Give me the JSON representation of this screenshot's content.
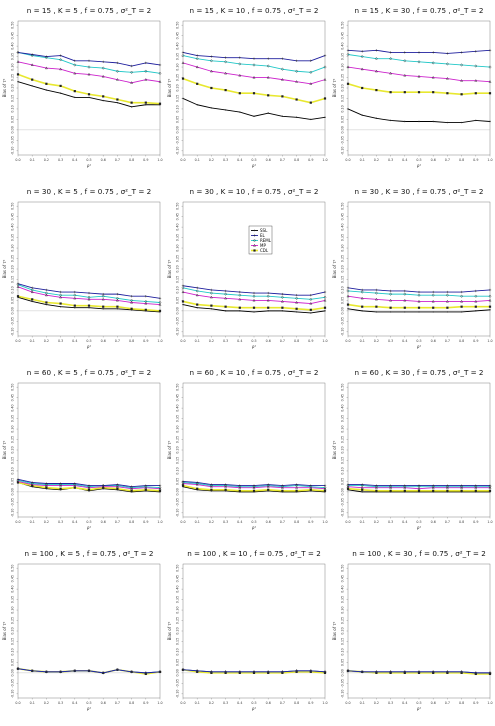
{
  "xlabel": "ρ²",
  "ylabel": "Bias of τ²",
  "x": [
    0.0,
    0.1,
    0.2,
    0.3,
    0.4,
    0.5,
    0.6,
    0.7,
    0.8,
    0.9,
    1.0
  ],
  "x_ticks": [
    "0.0",
    "0.1",
    "0.2",
    "0.3",
    "0.4",
    "0.5",
    "0.6",
    "0.7",
    "0.8",
    "0.9",
    "1.0"
  ],
  "y_ticks": [
    "-0.10",
    "-0.05",
    "0.00",
    "0.05",
    "0.10",
    "0.15",
    "0.20",
    "0.25",
    "0.30",
    "0.35",
    "0.40",
    "0.45",
    "0.50"
  ],
  "colors": {
    "SSL": "#000000",
    "EL": "#1f1f9e",
    "REML": "#22c8c8",
    "MP": "#cc22cc",
    "CDL": "#e8e830",
    "marker": "#222222",
    "zero": "#aaaaaa"
  },
  "chart_data": [
    {
      "type": "line",
      "title": "n = 15 , K = 5 , f = 0.75 , σ²_T = 2",
      "ylim": [
        -0.12,
        0.52
      ],
      "series": [
        {
          "name": "EL",
          "values": [
            0.37,
            0.36,
            0.35,
            0.355,
            0.33,
            0.33,
            0.325,
            0.32,
            0.305,
            0.32,
            0.31
          ]
        },
        {
          "name": "REML",
          "values": [
            0.37,
            0.355,
            0.345,
            0.335,
            0.31,
            0.3,
            0.295,
            0.28,
            0.275,
            0.28,
            0.27
          ]
        },
        {
          "name": "MP",
          "values": [
            0.325,
            0.31,
            0.295,
            0.29,
            0.27,
            0.265,
            0.255,
            0.24,
            0.225,
            0.24,
            0.23
          ]
        },
        {
          "name": "CDL",
          "values": [
            0.265,
            0.24,
            0.22,
            0.21,
            0.185,
            0.17,
            0.16,
            0.145,
            0.13,
            0.13,
            0.125
          ]
        },
        {
          "name": "SSL",
          "values": [
            0.23,
            0.21,
            0.19,
            0.175,
            0.155,
            0.155,
            0.14,
            0.13,
            0.11,
            0.12,
            0.12
          ]
        }
      ]
    },
    {
      "type": "line",
      "title": "n = 15 , K = 10 , f = 0.75 , σ²_T = 2",
      "ylim": [
        -0.12,
        0.52
      ],
      "series": [
        {
          "name": "EL",
          "values": [
            0.37,
            0.355,
            0.35,
            0.345,
            0.345,
            0.34,
            0.34,
            0.34,
            0.33,
            0.33,
            0.355
          ]
        },
        {
          "name": "REML",
          "values": [
            0.355,
            0.34,
            0.33,
            0.325,
            0.315,
            0.31,
            0.305,
            0.29,
            0.28,
            0.275,
            0.3
          ]
        },
        {
          "name": "MP",
          "values": [
            0.32,
            0.3,
            0.28,
            0.27,
            0.26,
            0.25,
            0.25,
            0.24,
            0.23,
            0.22,
            0.24
          ]
        },
        {
          "name": "CDL",
          "values": [
            0.245,
            0.22,
            0.2,
            0.19,
            0.175,
            0.175,
            0.165,
            0.16,
            0.145,
            0.13,
            0.15
          ]
        },
        {
          "name": "SSL",
          "values": [
            0.15,
            0.12,
            0.105,
            0.095,
            0.085,
            0.065,
            0.08,
            0.065,
            0.06,
            0.05,
            0.06
          ]
        }
      ]
    },
    {
      "type": "line",
      "title": "n = 15 , K = 30 , f = 0.75 , σ²_T = 2",
      "ylim": [
        -0.12,
        0.52
      ],
      "series": [
        {
          "name": "EL",
          "values": [
            0.38,
            0.375,
            0.38,
            0.37,
            0.37,
            0.37,
            0.37,
            0.365,
            0.37,
            0.375,
            0.38
          ]
        },
        {
          "name": "REML",
          "values": [
            0.36,
            0.35,
            0.34,
            0.34,
            0.33,
            0.325,
            0.32,
            0.315,
            0.31,
            0.305,
            0.3
          ]
        },
        {
          "name": "MP",
          "values": [
            0.3,
            0.29,
            0.28,
            0.27,
            0.26,
            0.255,
            0.25,
            0.245,
            0.235,
            0.235,
            0.23
          ]
        },
        {
          "name": "CDL",
          "values": [
            0.22,
            0.2,
            0.19,
            0.18,
            0.18,
            0.18,
            0.18,
            0.175,
            0.17,
            0.175,
            0.175
          ]
        },
        {
          "name": "SSL",
          "values": [
            0.1,
            0.07,
            0.055,
            0.045,
            0.04,
            0.04,
            0.04,
            0.035,
            0.035,
            0.045,
            0.04
          ]
        }
      ]
    },
    {
      "type": "line",
      "title": "n = 30 , K = 5 , f = 0.75 , σ²_T = 2",
      "ylim": [
        -0.12,
        0.52
      ],
      "series": [
        {
          "name": "EL",
          "values": [
            0.13,
            0.11,
            0.1,
            0.09,
            0.09,
            0.085,
            0.08,
            0.08,
            0.07,
            0.07,
            0.06
          ]
        },
        {
          "name": "REML",
          "values": [
            0.125,
            0.1,
            0.085,
            0.075,
            0.075,
            0.065,
            0.07,
            0.06,
            0.05,
            0.045,
            0.04
          ]
        },
        {
          "name": "MP",
          "values": [
            0.115,
            0.09,
            0.075,
            0.065,
            0.06,
            0.055,
            0.055,
            0.05,
            0.04,
            0.035,
            0.03
          ]
        },
        {
          "name": "CDL",
          "values": [
            0.07,
            0.055,
            0.04,
            0.035,
            0.025,
            0.025,
            0.02,
            0.02,
            0.01,
            0.005,
            0.0
          ]
        },
        {
          "name": "SSL",
          "values": [
            0.065,
            0.045,
            0.03,
            0.02,
            0.015,
            0.015,
            0.01,
            0.01,
            0.005,
            0.0,
            -0.005
          ]
        }
      ]
    },
    {
      "type": "line",
      "title": "n = 30 , K = 10 , f = 0.75 , σ²_T = 2",
      "ylim": [
        -0.12,
        0.52
      ],
      "series": [
        {
          "name": "EL",
          "values": [
            0.12,
            0.11,
            0.1,
            0.095,
            0.09,
            0.085,
            0.085,
            0.08,
            0.075,
            0.075,
            0.09
          ]
        },
        {
          "name": "REML",
          "values": [
            0.11,
            0.095,
            0.085,
            0.08,
            0.075,
            0.07,
            0.07,
            0.065,
            0.06,
            0.055,
            0.065
          ]
        },
        {
          "name": "MP",
          "values": [
            0.09,
            0.075,
            0.065,
            0.06,
            0.055,
            0.05,
            0.05,
            0.045,
            0.04,
            0.035,
            0.05
          ]
        },
        {
          "name": "CDL",
          "values": [
            0.045,
            0.03,
            0.025,
            0.02,
            0.015,
            0.015,
            0.015,
            0.015,
            0.01,
            0.005,
            0.015
          ]
        },
        {
          "name": "SSL",
          "values": [
            0.03,
            0.015,
            0.01,
            0.0,
            0.0,
            -0.005,
            0.0,
            0.0,
            -0.005,
            -0.01,
            0.0
          ]
        }
      ]
    },
    {
      "type": "line",
      "title": "n = 30 , K = 30 , f = 0.75 , σ²_T = 2",
      "ylim": [
        -0.12,
        0.52
      ],
      "series": [
        {
          "name": "EL",
          "values": [
            0.11,
            0.1,
            0.1,
            0.095,
            0.095,
            0.09,
            0.09,
            0.09,
            0.09,
            0.095,
            0.1
          ]
        },
        {
          "name": "REML",
          "values": [
            0.095,
            0.09,
            0.085,
            0.08,
            0.08,
            0.075,
            0.075,
            0.075,
            0.07,
            0.07,
            0.07
          ]
        },
        {
          "name": "MP",
          "values": [
            0.07,
            0.06,
            0.055,
            0.05,
            0.05,
            0.045,
            0.045,
            0.045,
            0.045,
            0.045,
            0.05
          ]
        },
        {
          "name": "CDL",
          "values": [
            0.03,
            0.02,
            0.02,
            0.015,
            0.015,
            0.015,
            0.015,
            0.015,
            0.02,
            0.02,
            0.02
          ]
        },
        {
          "name": "SSL",
          "values": [
            0.01,
            0.0,
            -0.005,
            -0.005,
            -0.005,
            -0.005,
            -0.005,
            -0.005,
            -0.005,
            0.0,
            0.005
          ]
        }
      ]
    },
    {
      "type": "line",
      "title": "n = 60 , K = 5 , f = 0.75 , σ²_T = 2",
      "ylim": [
        -0.12,
        0.52
      ],
      "series": [
        {
          "name": "EL",
          "values": [
            0.06,
            0.045,
            0.04,
            0.04,
            0.04,
            0.03,
            0.03,
            0.035,
            0.025,
            0.03,
            0.03
          ]
        },
        {
          "name": "REML",
          "values": [
            0.055,
            0.04,
            0.035,
            0.035,
            0.035,
            0.025,
            0.03,
            0.03,
            0.02,
            0.025,
            0.02
          ]
        },
        {
          "name": "MP",
          "values": [
            0.05,
            0.035,
            0.03,
            0.03,
            0.03,
            0.02,
            0.025,
            0.025,
            0.015,
            0.02,
            0.015
          ]
        },
        {
          "name": "CDL",
          "values": [
            0.045,
            0.03,
            0.02,
            0.015,
            0.02,
            0.01,
            0.02,
            0.015,
            0.005,
            0.01,
            0.005
          ]
        },
        {
          "name": "SSL",
          "values": [
            0.045,
            0.025,
            0.015,
            0.01,
            0.02,
            0.005,
            0.015,
            0.01,
            0.0,
            0.005,
            0.0
          ]
        }
      ]
    },
    {
      "type": "line",
      "title": "n = 60 , K = 10 , f = 0.75 , σ²_T = 2",
      "ylim": [
        -0.12,
        0.52
      ],
      "series": [
        {
          "name": "EL",
          "values": [
            0.05,
            0.045,
            0.035,
            0.035,
            0.03,
            0.03,
            0.035,
            0.03,
            0.035,
            0.03,
            0.03
          ]
        },
        {
          "name": "REML",
          "values": [
            0.045,
            0.04,
            0.03,
            0.03,
            0.025,
            0.025,
            0.03,
            0.025,
            0.03,
            0.025,
            0.02
          ]
        },
        {
          "name": "MP",
          "values": [
            0.04,
            0.035,
            0.025,
            0.025,
            0.02,
            0.02,
            0.025,
            0.02,
            0.02,
            0.02,
            0.015
          ]
        },
        {
          "name": "CDL",
          "values": [
            0.03,
            0.015,
            0.01,
            0.01,
            0.005,
            0.005,
            0.01,
            0.005,
            0.005,
            0.01,
            0.005
          ]
        },
        {
          "name": "SSL",
          "values": [
            0.025,
            0.01,
            0.005,
            0.005,
            0.0,
            0.0,
            0.005,
            0.0,
            0.0,
            0.005,
            0.0
          ]
        }
      ]
    },
    {
      "type": "line",
      "title": "n = 60 , K = 30 , f = 0.75 , σ²_T = 2",
      "ylim": [
        -0.12,
        0.52
      ],
      "series": [
        {
          "name": "EL",
          "values": [
            0.035,
            0.035,
            0.03,
            0.03,
            0.03,
            0.03,
            0.03,
            0.03,
            0.03,
            0.03,
            0.03
          ]
        },
        {
          "name": "REML",
          "values": [
            0.03,
            0.03,
            0.025,
            0.025,
            0.025,
            0.025,
            0.025,
            0.025,
            0.025,
            0.025,
            0.025
          ]
        },
        {
          "name": "MP",
          "values": [
            0.025,
            0.02,
            0.02,
            0.02,
            0.02,
            0.015,
            0.02,
            0.02,
            0.02,
            0.02,
            0.02
          ]
        },
        {
          "name": "CDL",
          "values": [
            0.015,
            0.01,
            0.005,
            0.005,
            0.005,
            0.005,
            0.005,
            0.005,
            0.005,
            0.005,
            0.005
          ]
        },
        {
          "name": "SSL",
          "values": [
            0.01,
            0.0,
            0.0,
            0.0,
            0.0,
            0.0,
            0.0,
            0.0,
            0.0,
            0.0,
            0.0
          ]
        }
      ]
    },
    {
      "type": "line",
      "title": "n = 100 , K = 5 , f = 0.75 , σ²_T = 2",
      "ylim": [
        -0.12,
        0.52
      ],
      "series": [
        {
          "name": "EL",
          "values": [
            0.02,
            0.01,
            0.005,
            0.005,
            0.01,
            0.01,
            0.0,
            0.015,
            0.005,
            0.0,
            0.005
          ]
        },
        {
          "name": "REML",
          "values": [
            0.02,
            0.01,
            0.005,
            0.005,
            0.01,
            0.01,
            0.0,
            0.015,
            0.005,
            0.0,
            0.005
          ]
        },
        {
          "name": "MP",
          "values": [
            0.02,
            0.01,
            0.005,
            0.005,
            0.01,
            0.01,
            0.0,
            0.015,
            0.005,
            0.0,
            0.005
          ]
        },
        {
          "name": "CDL",
          "values": [
            0.02,
            0.01,
            0.005,
            0.005,
            0.01,
            0.01,
            0.0,
            0.015,
            0.005,
            -0.005,
            0.005
          ]
        },
        {
          "name": "SSL",
          "values": [
            0.02,
            0.01,
            0.005,
            0.005,
            0.01,
            0.01,
            0.0,
            0.015,
            0.005,
            -0.005,
            0.005
          ]
        }
      ]
    },
    {
      "type": "line",
      "title": "n = 100 , K = 10 , f = 0.75 , σ²_T = 2",
      "ylim": [
        -0.12,
        0.52
      ],
      "series": [
        {
          "name": "EL",
          "values": [
            0.015,
            0.01,
            0.005,
            0.005,
            0.005,
            0.005,
            0.005,
            0.005,
            0.01,
            0.01,
            0.005
          ]
        },
        {
          "name": "REML",
          "values": [
            0.015,
            0.01,
            0.005,
            0.005,
            0.005,
            0.005,
            0.005,
            0.005,
            0.01,
            0.01,
            0.005
          ]
        },
        {
          "name": "MP",
          "values": [
            0.015,
            0.01,
            0.005,
            0.005,
            0.005,
            0.005,
            0.005,
            0.005,
            0.01,
            0.01,
            0.005
          ]
        },
        {
          "name": "CDL",
          "values": [
            0.015,
            0.005,
            0.0,
            0.0,
            0.0,
            0.0,
            0.0,
            0.0,
            0.005,
            0.005,
            0.0
          ]
        },
        {
          "name": "SSL",
          "values": [
            0.015,
            0.005,
            0.0,
            0.0,
            0.0,
            0.0,
            0.0,
            0.0,
            0.005,
            0.005,
            0.0
          ]
        }
      ]
    },
    {
      "type": "line",
      "title": "n = 100 , K = 30 , f = 0.75 , σ²_T = 2",
      "ylim": [
        -0.12,
        0.52
      ],
      "series": [
        {
          "name": "EL",
          "values": [
            0.01,
            0.005,
            0.005,
            0.005,
            0.005,
            0.005,
            0.005,
            0.005,
            0.005,
            0.0,
            0.0
          ]
        },
        {
          "name": "REML",
          "values": [
            0.01,
            0.005,
            0.005,
            0.005,
            0.005,
            0.005,
            0.005,
            0.005,
            0.005,
            0.0,
            0.0
          ]
        },
        {
          "name": "MP",
          "values": [
            0.01,
            0.005,
            0.005,
            0.005,
            0.005,
            0.005,
            0.005,
            0.005,
            0.005,
            0.0,
            0.0
          ]
        },
        {
          "name": "CDL",
          "values": [
            0.01,
            0.005,
            0.0,
            0.0,
            0.0,
            0.0,
            0.0,
            0.0,
            0.0,
            -0.005,
            -0.005
          ]
        },
        {
          "name": "SSL",
          "values": [
            0.01,
            0.005,
            0.0,
            0.0,
            0.0,
            0.0,
            0.0,
            0.0,
            0.0,
            -0.005,
            -0.005
          ]
        }
      ]
    }
  ],
  "legend": {
    "panel": 4,
    "placement": "top-center",
    "entries": [
      "SSL",
      "EL",
      "REML",
      "MP",
      "CDL"
    ]
  }
}
